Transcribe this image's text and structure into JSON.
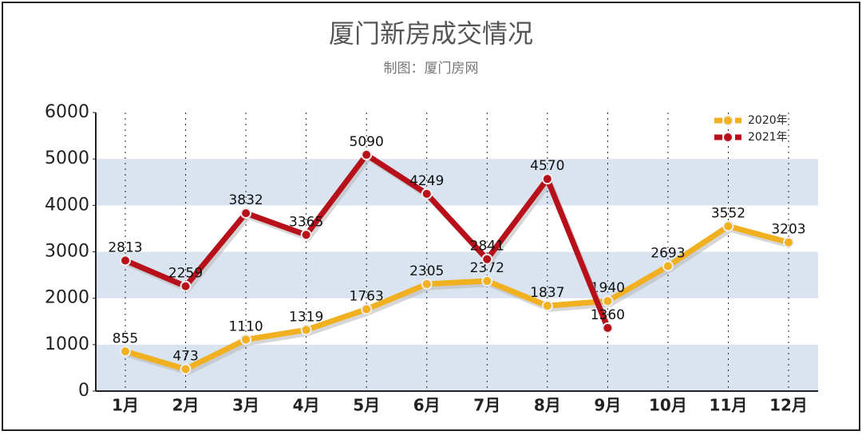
{
  "chart_data": {
    "type": "line",
    "title": "厦门新房成交情况",
    "subtitle": "制图：厦门房网",
    "categories": [
      "1月",
      "2月",
      "3月",
      "4月",
      "5月",
      "6月",
      "7月",
      "8月",
      "9月",
      "10月",
      "11月",
      "12月"
    ],
    "series": [
      {
        "name": "2020年",
        "color": "#f0b020",
        "values": [
          855,
          473,
          1110,
          1319,
          1763,
          2305,
          2372,
          1837,
          1940,
          2693,
          3552,
          3203
        ]
      },
      {
        "name": "2021年",
        "color": "#b8101a",
        "values": [
          2813,
          2259,
          3832,
          3365,
          5090,
          4249,
          2841,
          4570,
          1360,
          null,
          null,
          null
        ]
      }
    ],
    "ylim": [
      0,
      6000
    ],
    "yticks": [
      0,
      1000,
      2000,
      3000,
      4000,
      5000,
      6000
    ],
    "grid": "bands",
    "legend": "top-right"
  }
}
